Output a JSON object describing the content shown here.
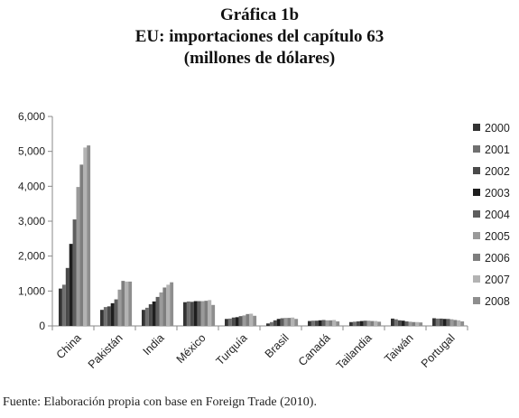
{
  "chart_data": {
    "type": "bar",
    "title": "Gráfica 1b",
    "subtitle_lines": [
      "EU: importaciones del capítulo 63",
      "(millones de dólares)"
    ],
    "categories": [
      "China",
      "Pakistán",
      "India",
      "México",
      "Turquía",
      "Brasil",
      "Canadá",
      "Tailandia",
      "Taiwán",
      "Portugal"
    ],
    "ylim": [
      0,
      6000
    ],
    "yticks": [
      "0",
      "1,000",
      "2,000",
      "3,000",
      "4,000",
      "5,000",
      "6,000"
    ],
    "ytick_values": [
      0,
      1000,
      2000,
      3000,
      4000,
      5000,
      6000
    ],
    "grid": false,
    "legend_position": "right",
    "series": [
      {
        "name": "2000",
        "color": "#333333",
        "values": [
          1070,
          460,
          460,
          680,
          200,
          70,
          140,
          110,
          210,
          220
        ]
      },
      {
        "name": "2001",
        "color": "#707070",
        "values": [
          1180,
          540,
          520,
          700,
          210,
          110,
          150,
          120,
          190,
          210
        ]
      },
      {
        "name": "2002",
        "color": "#4a4a4a",
        "values": [
          1660,
          560,
          620,
          690,
          240,
          160,
          150,
          130,
          160,
          210
        ]
      },
      {
        "name": "2003",
        "color": "#1e1e1e",
        "values": [
          2350,
          650,
          700,
          710,
          250,
          200,
          160,
          140,
          150,
          200
        ]
      },
      {
        "name": "2004",
        "color": "#5e5e5e",
        "values": [
          3050,
          760,
          830,
          710,
          280,
          220,
          170,
          150,
          130,
          200
        ]
      },
      {
        "name": "2005",
        "color": "#9a9a9a",
        "values": [
          3980,
          1040,
          960,
          710,
          300,
          230,
          160,
          150,
          120,
          190
        ]
      },
      {
        "name": "2006",
        "color": "#7e7e7e",
        "values": [
          4620,
          1290,
          1100,
          720,
          340,
          230,
          160,
          140,
          110,
          170
        ]
      },
      {
        "name": "2007",
        "color": "#b3b3b3",
        "values": [
          5110,
          1270,
          1180,
          740,
          350,
          240,
          170,
          140,
          110,
          160
        ]
      },
      {
        "name": "2008",
        "color": "#8e8e8e",
        "values": [
          5170,
          1270,
          1250,
          600,
          290,
          200,
          130,
          120,
          100,
          130
        ]
      }
    ]
  },
  "source_note": "Fuente: Elaboración propia con base en Foreign Trade (2010)."
}
